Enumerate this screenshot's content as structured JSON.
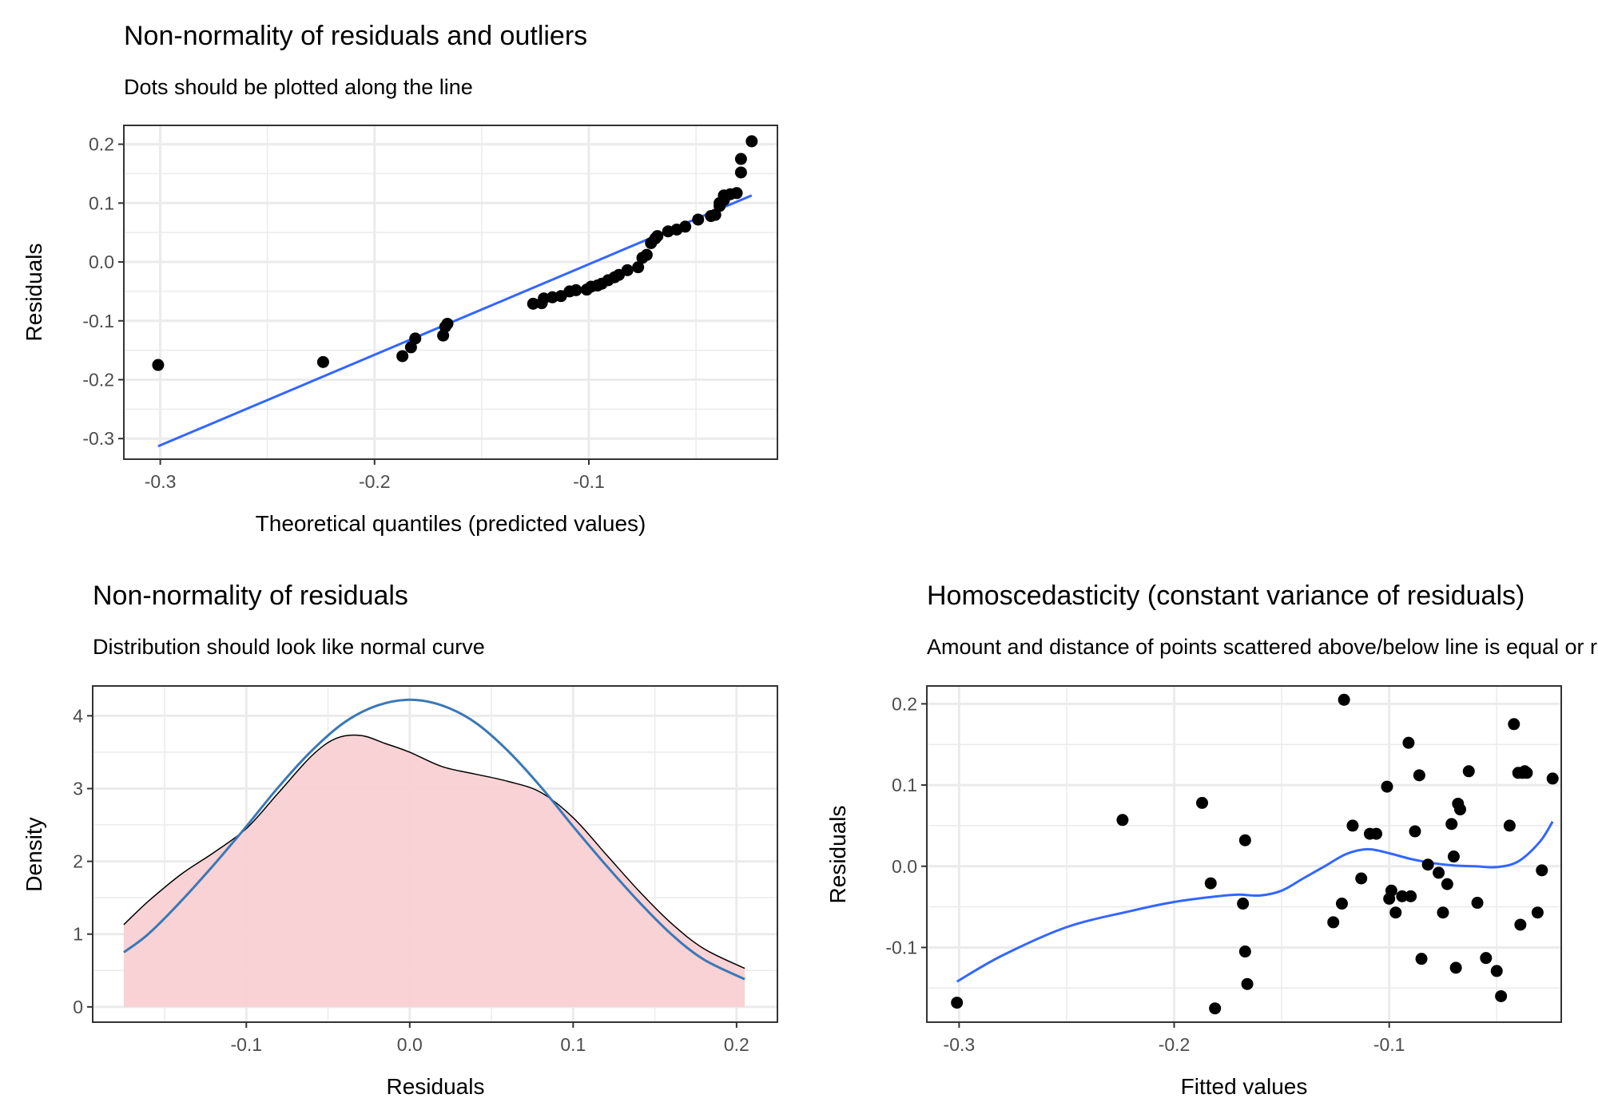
{
  "panels": {
    "qq": {
      "title": "Non-normality of residuals and outliers",
      "subtitle": "Dots should be plotted along the line",
      "xlabel": "Theoretical quantiles (predicted values)",
      "ylabel": "Residuals"
    },
    "density": {
      "title": "Non-normality of residuals",
      "subtitle": "Distribution should look like normal curve",
      "xlabel": "Residuals",
      "ylabel": "Density"
    },
    "homo": {
      "title": "Homoscedasticity (constant variance of residuals)",
      "subtitle": "Amount and distance of points scattered above/below line is equal or randomly spread",
      "xlabel": "Fitted values",
      "ylabel": "Residuals"
    }
  },
  "colors": {
    "points": "#000000",
    "fit_line": "#3366FF",
    "normal_curve": "#3A78B6",
    "density_fill": "#F8D0D3",
    "density_outline": "#000000",
    "grid": "#EBEBEB",
    "panel_border": "#333333"
  },
  "chart_data": [
    {
      "id": "qq",
      "type": "scatter",
      "xlim": [
        -0.317,
        -0.012
      ],
      "ylim": [
        -0.335,
        0.232
      ],
      "xticks": [
        -0.3,
        -0.2,
        -0.1
      ],
      "xtick_labels": [
        "-0.3",
        "-0.2",
        "-0.1"
      ],
      "yticks": [
        -0.3,
        -0.2,
        -0.1,
        0.0,
        0.1,
        0.2
      ],
      "ytick_labels": [
        "-0.3",
        "-0.2",
        "-0.1",
        "0.0",
        "0.1",
        "0.2"
      ],
      "grid": true,
      "points": {
        "x": [
          -0.301,
          -0.224,
          -0.187,
          -0.183,
          -0.181,
          -0.168,
          -0.167,
          -0.166,
          -0.126,
          -0.122,
          -0.121,
          -0.117,
          -0.113,
          -0.109,
          -0.106,
          -0.101,
          -0.099,
          -0.096,
          -0.094,
          -0.091,
          -0.088,
          -0.086,
          -0.082,
          -0.077,
          -0.075,
          -0.073,
          -0.071,
          -0.069,
          -0.068,
          -0.063,
          -0.059,
          -0.055,
          -0.049,
          -0.043,
          -0.041,
          -0.039,
          -0.039,
          -0.037,
          -0.037,
          -0.034,
          -0.031,
          -0.029,
          -0.029,
          -0.024
        ],
        "y": [
          -0.175,
          -0.17,
          -0.16,
          -0.145,
          -0.13,
          -0.125,
          -0.11,
          -0.105,
          -0.071,
          -0.07,
          -0.062,
          -0.06,
          -0.058,
          -0.05,
          -0.048,
          -0.047,
          -0.042,
          -0.04,
          -0.037,
          -0.031,
          -0.026,
          -0.022,
          -0.014,
          -0.009,
          0.007,
          0.012,
          0.032,
          0.04,
          0.044,
          0.052,
          0.055,
          0.06,
          0.072,
          0.078,
          0.08,
          0.095,
          0.1,
          0.105,
          0.113,
          0.115,
          0.117,
          0.152,
          0.175,
          0.205
        ]
      },
      "reference_line": {
        "x": [
          -0.301,
          -0.024
        ],
        "y": [
          -0.313,
          0.113
        ]
      }
    },
    {
      "id": "density",
      "type": "area",
      "xlim": [
        -0.194,
        0.225
      ],
      "ylim": [
        -0.21,
        4.41
      ],
      "xticks": [
        -0.1,
        0.0,
        0.1,
        0.2
      ],
      "xtick_labels": [
        "-0.1",
        "0.0",
        "0.1",
        "0.2"
      ],
      "yticks": [
        0,
        1,
        2,
        3,
        4
      ],
      "ytick_labels": [
        "0",
        "1",
        "2",
        "3",
        "4"
      ],
      "grid": true,
      "density": {
        "x": [
          -0.175,
          -0.16,
          -0.14,
          -0.12,
          -0.1,
          -0.08,
          -0.06,
          -0.045,
          -0.03,
          -0.015,
          0.0,
          0.02,
          0.04,
          0.06,
          0.08,
          0.1,
          0.12,
          0.14,
          0.16,
          0.18,
          0.205
        ],
        "y": [
          1.13,
          1.45,
          1.82,
          2.12,
          2.45,
          2.95,
          3.45,
          3.69,
          3.73,
          3.62,
          3.5,
          3.3,
          3.2,
          3.1,
          2.95,
          2.6,
          2.1,
          1.6,
          1.15,
          0.8,
          0.53
        ]
      },
      "normal_curve": {
        "x": [
          -0.175,
          -0.16,
          -0.14,
          -0.12,
          -0.1,
          -0.08,
          -0.06,
          -0.04,
          -0.02,
          0.0,
          0.02,
          0.04,
          0.06,
          0.08,
          0.1,
          0.12,
          0.14,
          0.16,
          0.18,
          0.205
        ],
        "y": [
          0.75,
          1.0,
          1.45,
          1.95,
          2.48,
          3.03,
          3.52,
          3.91,
          4.14,
          4.22,
          4.14,
          3.91,
          3.52,
          3.03,
          2.48,
          1.95,
          1.45,
          1.0,
          0.65,
          0.38
        ]
      }
    },
    {
      "id": "homo",
      "type": "scatter",
      "xlim": [
        -0.315,
        -0.02
      ],
      "ylim": [
        -0.192,
        0.222
      ],
      "xticks": [
        -0.3,
        -0.2,
        -0.1
      ],
      "xtick_labels": [
        "-0.3",
        "-0.2",
        "-0.1"
      ],
      "yticks": [
        -0.1,
        0.0,
        0.1,
        0.2
      ],
      "ytick_labels": [
        "-0.1",
        "0.0",
        "0.1",
        "0.2"
      ],
      "grid": true,
      "points": {
        "x": [
          -0.301,
          -0.224,
          -0.187,
          -0.183,
          -0.181,
          -0.168,
          -0.167,
          -0.167,
          -0.166,
          -0.126,
          -0.122,
          -0.121,
          -0.117,
          -0.113,
          -0.109,
          -0.106,
          -0.101,
          -0.1,
          -0.099,
          -0.097,
          -0.094,
          -0.091,
          -0.09,
          -0.088,
          -0.086,
          -0.085,
          -0.082,
          -0.077,
          -0.075,
          -0.073,
          -0.071,
          -0.07,
          -0.069,
          -0.068,
          -0.067,
          -0.063,
          -0.059,
          -0.055,
          -0.05,
          -0.048,
          -0.044,
          -0.042,
          -0.04,
          -0.039,
          -0.038,
          -0.037,
          -0.036,
          -0.031,
          -0.029,
          -0.024
        ],
        "y": [
          -0.168,
          0.057,
          0.078,
          -0.021,
          -0.175,
          -0.046,
          0.032,
          -0.105,
          -0.145,
          -0.069,
          -0.046,
          0.205,
          0.05,
          -0.015,
          0.04,
          0.04,
          0.098,
          -0.04,
          -0.03,
          -0.057,
          -0.037,
          0.152,
          -0.037,
          0.043,
          0.112,
          -0.114,
          0.002,
          -0.008,
          -0.057,
          -0.022,
          0.052,
          0.012,
          -0.125,
          0.077,
          0.07,
          0.117,
          -0.045,
          -0.113,
          -0.129,
          -0.16,
          0.05,
          0.175,
          0.115,
          -0.072,
          0.115,
          0.117,
          0.115,
          -0.057,
          -0.005,
          0.108
        ]
      },
      "smooth_line": {
        "x": [
          -0.301,
          -0.28,
          -0.25,
          -0.22,
          -0.2,
          -0.18,
          -0.17,
          -0.16,
          -0.15,
          -0.14,
          -0.13,
          -0.12,
          -0.11,
          -0.1,
          -0.09,
          -0.08,
          -0.07,
          -0.06,
          -0.05,
          -0.04,
          -0.03,
          -0.024
        ],
        "y": [
          -0.142,
          -0.11,
          -0.075,
          -0.055,
          -0.044,
          -0.037,
          -0.035,
          -0.036,
          -0.03,
          -0.015,
          0.0,
          0.015,
          0.021,
          0.016,
          0.009,
          0.004,
          0.001,
          0.0,
          -0.001,
          0.006,
          0.03,
          0.055
        ]
      }
    }
  ]
}
